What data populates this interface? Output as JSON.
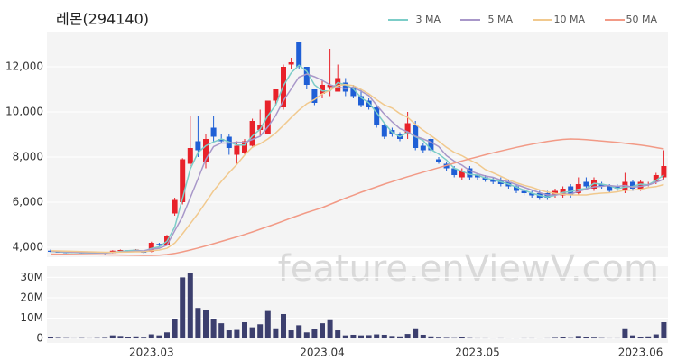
{
  "title": "레몬(294140)",
  "watermark": "feature.enViewV.com",
  "chart_data": [
    {
      "type": "candlestick",
      "up_color": "#e8222a",
      "down_color": "#1f5fd6",
      "open": [
        3850,
        3800,
        3780,
        3760,
        3770,
        3750,
        3770,
        3760,
        3740,
        3840,
        3870,
        3840,
        3850,
        3800,
        4150,
        4100,
        5500,
        6000,
        7700,
        8700,
        7800,
        9300,
        8800,
        8900,
        8100,
        8200,
        8500,
        9200,
        9000,
        10500,
        10200,
        12100,
        13100,
        12000,
        11000,
        10800,
        11100,
        10900,
        11300,
        11100,
        10700,
        10500,
        10200,
        9400,
        9200,
        9000,
        9000,
        9400,
        8500,
        8800,
        7900,
        7700,
        7500,
        7100,
        7500,
        7200,
        7100,
        7000,
        7000,
        6900,
        6700,
        6500,
        6400,
        6400,
        6400,
        6300,
        6300,
        6700,
        6400,
        6900,
        6600,
        6800,
        6700,
        6700,
        6500,
        6900,
        6600,
        6800,
        6900,
        7100
      ],
      "high": [
        3900,
        3830,
        3800,
        3800,
        3790,
        3800,
        3790,
        3780,
        3870,
        3900,
        3880,
        3920,
        3860,
        4250,
        4200,
        4550,
        6200,
        7950,
        9800,
        9800,
        9000,
        9800,
        9000,
        9000,
        8700,
        8800,
        9700,
        10100,
        10500,
        11000,
        12100,
        12400,
        13100,
        12000,
        11000,
        11400,
        12800,
        12100,
        11500,
        11200,
        11000,
        10600,
        10300,
        9500,
        9300,
        9100,
        10000,
        9600,
        8600,
        8900,
        8000,
        7800,
        7600,
        7500,
        7600,
        7300,
        7200,
        7100,
        7100,
        7000,
        6800,
        6600,
        6500,
        6500,
        6500,
        6600,
        6700,
        6800,
        7100,
        7100,
        7100,
        6900,
        6800,
        6800,
        7300,
        7000,
        7000,
        6900,
        7300,
        8300
      ],
      "low": [
        3780,
        3760,
        3730,
        3740,
        3720,
        3740,
        3730,
        3700,
        3730,
        3820,
        3810,
        3830,
        3740,
        3780,
        4050,
        4080,
        5400,
        5900,
        7600,
        8000,
        7500,
        8700,
        8600,
        8100,
        7700,
        8100,
        8400,
        8900,
        9000,
        10300,
        10100,
        11900,
        11900,
        11000,
        10300,
        10600,
        10700,
        10900,
        10700,
        10600,
        10200,
        10100,
        9300,
        8800,
        8900,
        8700,
        8800,
        8300,
        8200,
        8200,
        7700,
        7400,
        7100,
        7000,
        7000,
        7000,
        6900,
        6800,
        6700,
        6600,
        6400,
        6300,
        6200,
        6100,
        6100,
        6200,
        6200,
        6200,
        6300,
        6600,
        6500,
        6600,
        6400,
        6500,
        6400,
        6500,
        6500,
        6700,
        6800,
        7000
      ],
      "close": [
        3800,
        3780,
        3750,
        3780,
        3740,
        3780,
        3750,
        3720,
        3850,
        3880,
        3830,
        3900,
        3760,
        4200,
        4100,
        4500,
        6100,
        7900,
        8400,
        8300,
        8800,
        8900,
        8700,
        8400,
        8500,
        8700,
        9600,
        9400,
        10500,
        11000,
        12000,
        12200,
        12000,
        11200,
        10400,
        11200,
        11200,
        11500,
        10900,
        10700,
        10300,
        10200,
        9400,
        8900,
        9000,
        8800,
        9500,
        8400,
        8300,
        8300,
        7800,
        7500,
        7200,
        7400,
        7100,
        7100,
        7000,
        6900,
        6800,
        6700,
        6500,
        6400,
        6300,
        6200,
        6200,
        6500,
        6600,
        6300,
        6800,
        6700,
        7000,
        6700,
        6500,
        6600,
        6900,
        6600,
        6900,
        6800,
        7200,
        7600
      ],
      "series": [
        {
          "name": "3 MA",
          "color": "#7ccdc8",
          "values": [
            3820,
            3800,
            3777,
            3770,
            3757,
            3753,
            3757,
            3750,
            3773,
            3817,
            3853,
            3870,
            3830,
            3953,
            4020,
            4267,
            4900,
            6167,
            7467,
            8200,
            8500,
            8667,
            8800,
            8667,
            8533,
            8533,
            8933,
            9233,
            9833,
            10300,
            11167,
            11733,
            12067,
            11800,
            11200,
            10933,
            10933,
            11300,
            11200,
            11033,
            10633,
            10400,
            9967,
            9500,
            9100,
            8900,
            9100,
            8900,
            8733,
            8333,
            8133,
            7867,
            7500,
            7367,
            7233,
            7200,
            7067,
            7000,
            6900,
            6800,
            6667,
            6533,
            6400,
            6300,
            6233,
            6300,
            6433,
            6467,
            6567,
            6600,
            6833,
            6800,
            6733,
            6600,
            6667,
            6700,
            6800,
            6767,
            6967,
            7200
          ]
        },
        {
          "name": "5 MA",
          "color": "#a897c9",
          "values": [
            3830,
            3815,
            3800,
            3785,
            3770,
            3766,
            3760,
            3754,
            3768,
            3796,
            3806,
            3836,
            3844,
            3914,
            3958,
            4092,
            4732,
            5360,
            6200,
            7040,
            7900,
            8460,
            8620,
            8620,
            8660,
            8640,
            8780,
            8920,
            9340,
            9840,
            10500,
            11020,
            11540,
            11680,
            11560,
            11400,
            11200,
            11100,
            11040,
            11100,
            10920,
            10720,
            10300,
            9900,
            9560,
            9260,
            9120,
            8920,
            8800,
            8660,
            8460,
            8060,
            7820,
            7640,
            7400,
            7260,
            7160,
            7100,
            6980,
            6900,
            6780,
            6660,
            6540,
            6420,
            6320,
            6320,
            6360,
            6360,
            6480,
            6580,
            6680,
            6700,
            6740,
            6700,
            6740,
            6660,
            6700,
            6760,
            6880,
            7020
          ]
        },
        {
          "name": "10 MA",
          "color": "#f1c98e",
          "values": [
            3850,
            3840,
            3830,
            3820,
            3810,
            3800,
            3790,
            3780,
            3780,
            3785,
            3790,
            3800,
            3800,
            3845,
            3880,
            3955,
            4190,
            4600,
            5050,
            5500,
            6000,
            6500,
            6920,
            7310,
            7670,
            8090,
            8440,
            8590,
            8800,
            9070,
            9400,
            9750,
            10080,
            10360,
            10550,
            10800,
            10960,
            11170,
            11210,
            11170,
            11000,
            10800,
            10540,
            10310,
            10170,
            9930,
            9760,
            9450,
            9190,
            8950,
            8700,
            8430,
            8210,
            8060,
            7870,
            7700,
            7450,
            7300,
            7150,
            6990,
            6860,
            6750,
            6660,
            6540,
            6450,
            6390,
            6350,
            6320,
            6320,
            6320,
            6370,
            6400,
            6420,
            6460,
            6530,
            6540,
            6570,
            6650,
            6690,
            6780
          ]
        },
        {
          "name": "50 MA",
          "color": "#f29a86",
          "values": [
            3700,
            3695,
            3690,
            3685,
            3680,
            3675,
            3670,
            3665,
            3660,
            3655,
            3650,
            3645,
            3640,
            3640,
            3650,
            3680,
            3730,
            3800,
            3880,
            3970,
            4060,
            4160,
            4260,
            4360,
            4460,
            4570,
            4680,
            4800,
            4920,
            5040,
            5170,
            5300,
            5420,
            5540,
            5650,
            5760,
            5900,
            6040,
            6180,
            6310,
            6440,
            6560,
            6680,
            6800,
            6910,
            7020,
            7130,
            7230,
            7330,
            7430,
            7530,
            7630,
            7730,
            7830,
            7920,
            8010,
            8100,
            8190,
            8270,
            8350,
            8430,
            8500,
            8570,
            8630,
            8690,
            8740,
            8780,
            8800,
            8790,
            8770,
            8740,
            8710,
            8680,
            8650,
            8610,
            8570,
            8530,
            8480,
            8420,
            8360
          ]
        }
      ],
      "ylim": [
        3560,
        13560
      ],
      "yticks": [
        {
          "value": 4000,
          "label": "4,000"
        },
        {
          "value": 6000,
          "label": "6,000"
        },
        {
          "value": 8000,
          "label": "8,000"
        },
        {
          "value": 10000,
          "label": "10,000"
        },
        {
          "value": 12000,
          "label": "12,000"
        }
      ],
      "grid": true
    },
    {
      "type": "bar",
      "color": "#3c3f6e",
      "categories": [
        null,
        null,
        null,
        null,
        null,
        null,
        null,
        null,
        null,
        null,
        null,
        null,
        null,
        "2023.03",
        null,
        null,
        null,
        null,
        null,
        null,
        null,
        null,
        null,
        null,
        null,
        null,
        null,
        null,
        null,
        null,
        null,
        null,
        null,
        null,
        null,
        "2023.04",
        null,
        null,
        null,
        null,
        null,
        null,
        null,
        null,
        null,
        null,
        null,
        null,
        null,
        null,
        null,
        null,
        null,
        null,
        null,
        "2023.05",
        null,
        null,
        null,
        null,
        null,
        null,
        null,
        null,
        null,
        null,
        null,
        null,
        null,
        null,
        null,
        null,
        null,
        null,
        null,
        null,
        "2023.06",
        null,
        null,
        null
      ],
      "values": [
        900000,
        700000,
        600000,
        500000,
        600000,
        500000,
        600000,
        700000,
        1500000,
        1200000,
        900000,
        1000000,
        800000,
        2000000,
        1500000,
        3000000,
        9500000,
        30000000,
        32000000,
        15000000,
        14000000,
        9500000,
        7500000,
        4000000,
        4200000,
        8000000,
        5500000,
        7000000,
        13500000,
        5000000,
        12000000,
        4000000,
        6500000,
        3000000,
        4500000,
        7500000,
        9000000,
        4000000,
        1500000,
        1800000,
        1500000,
        1600000,
        2000000,
        1800000,
        1200000,
        1000000,
        2200000,
        5000000,
        1800000,
        1000000,
        800000,
        700000,
        600000,
        900000,
        600000,
        500000,
        500000,
        400000,
        500000,
        400000,
        400000,
        500000,
        500000,
        400000,
        500000,
        700000,
        900000,
        600000,
        1200000,
        900000,
        800000,
        600000,
        500000,
        500000,
        5000000,
        1500000,
        900000,
        1000000,
        2000000,
        8000000
      ],
      "ylim": [
        -2200000,
        35500000
      ],
      "yticks": [
        0,
        {
          "value": 10000000,
          "label": "10M"
        },
        {
          "value": 20000000,
          "label": "20M"
        },
        {
          "value": 30000000,
          "label": "30M"
        }
      ],
      "grid": true
    }
  ]
}
